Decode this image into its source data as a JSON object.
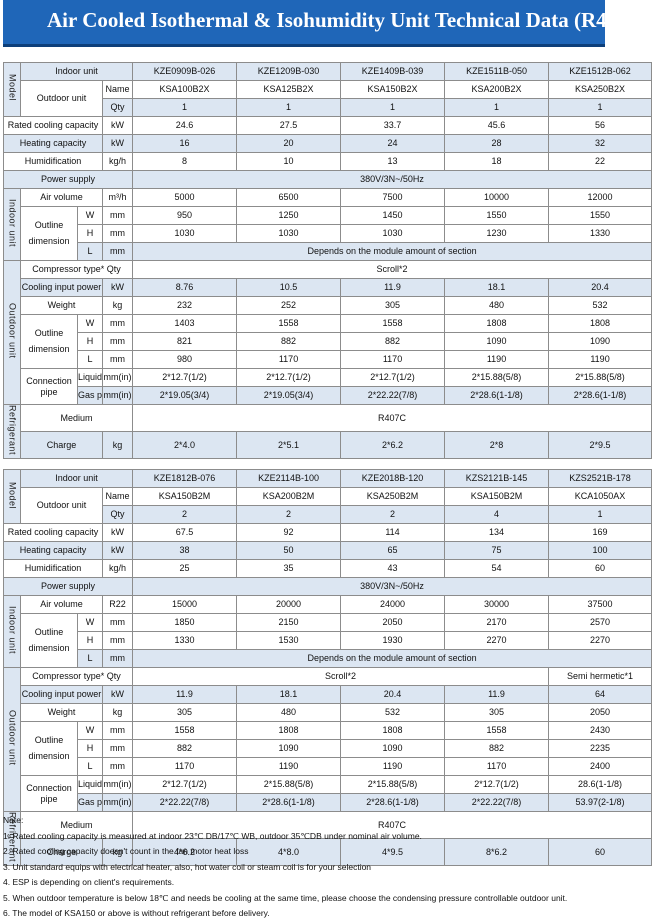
{
  "title": "Air Cooled Isothermal & Isohumidity Unit Technical Data (R407C)",
  "tables": [
    {
      "models": [
        "KZE0909B-026",
        "KZE1209B-030",
        "KZE1409B-039",
        "KZE1511B-050",
        "KZE1512B-062"
      ],
      "outdoor_names": [
        "KSA100B2X",
        "KSA125B2X",
        "KSA150B2X",
        "KSA200B2X",
        "KSA250B2X"
      ],
      "qty": [
        "1",
        "1",
        "1",
        "1",
        "1"
      ],
      "rated_cooling": [
        "24.6",
        "27.5",
        "33.7",
        "45.6",
        "56"
      ],
      "heating": [
        "16",
        "20",
        "24",
        "28",
        "32"
      ],
      "humidification": [
        "8",
        "10",
        "13",
        "18",
        "22"
      ],
      "power_supply": "380V/3N~/50Hz",
      "air_volume": [
        "5000",
        "6500",
        "7500",
        "10000",
        "12000"
      ],
      "indoor_w": [
        "950",
        "1250",
        "1450",
        "1550",
        "1550"
      ],
      "indoor_h": [
        "1030",
        "1030",
        "1030",
        "1230",
        "1330"
      ],
      "indoor_l": "Depends on the module amount of section",
      "compressor": "Scroll*2",
      "cooling_input": [
        "8.76",
        "10.5",
        "11.9",
        "18.1",
        "20.4"
      ],
      "weight": [
        "232",
        "252",
        "305",
        "480",
        "532"
      ],
      "out_w": [
        "1403",
        "1558",
        "1558",
        "1808",
        "1808"
      ],
      "out_h": [
        "821",
        "882",
        "882",
        "1090",
        "1090"
      ],
      "out_l": [
        "980",
        "1170",
        "1170",
        "1190",
        "1190"
      ],
      "liquid_pipe": [
        "2*12.7(1/2)",
        "2*12.7(1/2)",
        "2*12.7(1/2)",
        "2*15.88(5/8)",
        "2*15.88(5/8)"
      ],
      "gas_pipe": [
        "2*19.05(3/4)",
        "2*19.05(3/4)",
        "2*22.22(7/8)",
        "2*28.6(1-1/8)",
        "2*28.6(1-1/8)"
      ],
      "medium": "R407C",
      "charge": [
        "2*4.0",
        "2*5.1",
        "2*6.2",
        "2*8",
        "2*9.5"
      ]
    },
    {
      "models": [
        "KZE1812B-076",
        "KZE2114B-100",
        "KZE2018B-120",
        "KZS2121B-145",
        "KZS2521B-178"
      ],
      "outdoor_names": [
        "KSA150B2M",
        "KSA200B2M",
        "KSA250B2M",
        "KSA150B2M",
        "KCA1050AX"
      ],
      "qty": [
        "2",
        "2",
        "2",
        "4",
        "1"
      ],
      "rated_cooling": [
        "67.5",
        "92",
        "114",
        "134",
        "169"
      ],
      "heating": [
        "38",
        "50",
        "65",
        "75",
        "100"
      ],
      "humidification": [
        "25",
        "35",
        "43",
        "54",
        "60"
      ],
      "power_supply": "380V/3N~/50Hz",
      "air_volume_unit": "R22",
      "air_volume": [
        "15000",
        "20000",
        "24000",
        "30000",
        "37500"
      ],
      "indoor_w": [
        "1850",
        "2150",
        "2050",
        "2170",
        "2570"
      ],
      "indoor_h": [
        "1330",
        "1530",
        "1930",
        "2270",
        "2270"
      ],
      "indoor_l": "Depends on the module amount of section",
      "compressor": "Scroll*2",
      "compressor_last": "Semi hermetic*1",
      "cooling_input": [
        "11.9",
        "18.1",
        "20.4",
        "11.9",
        "64"
      ],
      "weight": [
        "305",
        "480",
        "532",
        "305",
        "2050"
      ],
      "out_w": [
        "1558",
        "1808",
        "1808",
        "1558",
        "2430"
      ],
      "out_h": [
        "882",
        "1090",
        "1090",
        "882",
        "2235"
      ],
      "out_l": [
        "1170",
        "1190",
        "1190",
        "1170",
        "2400"
      ],
      "liquid_pipe": [
        "2*12.7(1/2)",
        "2*15.88(5/8)",
        "2*15.88(5/8)",
        "2*12.7(1/2)",
        "28.6(1-1/8)"
      ],
      "gas_pipe": [
        "2*22.22(7/8)",
        "2*28.6(1-1/8)",
        "2*28.6(1-1/8)",
        "2*22.22(7/8)",
        "53.97(2-1/8)"
      ],
      "medium": "R407C",
      "charge": [
        "4*6.2",
        "4*8.0",
        "4*9.5",
        "8*6.2",
        "60"
      ]
    }
  ],
  "labels": {
    "model": "Model",
    "indoor_unit_row": "Indoor unit",
    "outdoor_unit": "Outdoor unit",
    "name": "Name",
    "qty": "Qty",
    "rated_cooling": "Rated cooling capacity",
    "heating": "Heating capacity",
    "humidification": "Humidification",
    "power_supply": "Power supply",
    "indoor_section": "Indoor unit",
    "air_volume": "Air volume",
    "outline": "Outline",
    "dimension": "dimension",
    "w": "W",
    "h": "H",
    "l": "L",
    "compressor": "Compressor type* Qty",
    "cooling_input": "Cooling input power",
    "weight": "Weight",
    "outdoor_section": "Outdoor unit",
    "connection": "Connection",
    "pipe": "pipe",
    "liquid": "Liquid pipe",
    "gas": "Gas pipe",
    "refrigerant_section": "Refrigerant",
    "medium": "Medium",
    "charge": "Charge"
  },
  "units": {
    "kw": "kW",
    "kgh": "kg/h",
    "m3h": "m³/h",
    "mm": "mm",
    "kg": "kg",
    "mmin": "mm(in)"
  },
  "notes": {
    "heading": "Note:",
    "items": [
      "1. Rated cooling capacity is measured at indoor 23℃ DB/17℃ WB, outdoor 35℃DB under nominal air volume.",
      "2. Rated cooling capacity doesn't count in the fan motor heat loss",
      "3. Unit standard equips with electrical heater, also, hot water coil or steam coil is for your selection",
      "4. ESP is depending on client's requirements.",
      "5. When outdoor temperature is below 18℃ and needs be cooling at the same time, please choose the condensing pressure controllable outdoor unit.",
      "6. The model of KSA150 or above is without refrigerant before delivery."
    ]
  }
}
